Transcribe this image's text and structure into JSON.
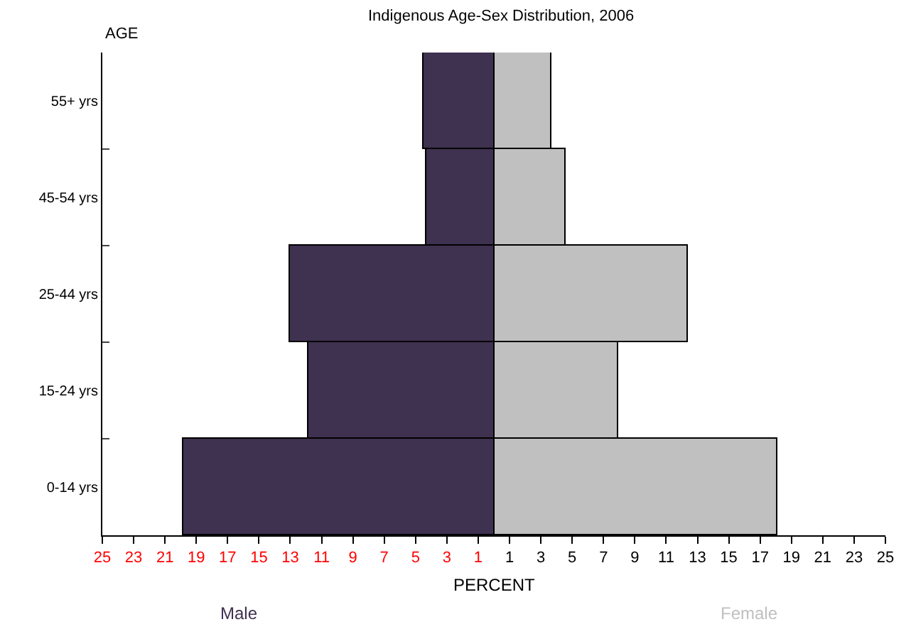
{
  "chart_data": {
    "type": "bar",
    "title": "Indigenous Age-Sex Distribution, 2006",
    "xlabel": "PERCENT",
    "ylabel": "AGE",
    "orientation": "horizontal",
    "stacked": true,
    "categories": [
      "55+ yrs",
      "45-54 yrs",
      "25-44 yrs",
      "15-24 yrs",
      "0-14 yrs"
    ],
    "series": [
      {
        "name": "Male",
        "color": "#3f3150",
        "values": [
          -4.5,
          -4.3,
          -13.0,
          -11.8,
          -19.8
        ]
      },
      {
        "name": "Female",
        "color": "#c0c0c0",
        "values": [
          3.7,
          4.6,
          12.4,
          7.9,
          18.1
        ]
      }
    ],
    "xlim": [
      -25,
      25
    ],
    "xticks": [
      {
        "value": -25,
        "label": "25"
      },
      {
        "value": -23,
        "label": "23"
      },
      {
        "value": -21,
        "label": "21"
      },
      {
        "value": -19,
        "label": "19"
      },
      {
        "value": -17,
        "label": "17"
      },
      {
        "value": -15,
        "label": "15"
      },
      {
        "value": -13,
        "label": "13"
      },
      {
        "value": -11,
        "label": "11"
      },
      {
        "value": -9,
        "label": "9"
      },
      {
        "value": -7,
        "label": "7"
      },
      {
        "value": -5,
        "label": "5"
      },
      {
        "value": -3,
        "label": "3"
      },
      {
        "value": -1,
        "label": "1"
      },
      1,
      3,
      5,
      7,
      9,
      11,
      13,
      15,
      17,
      19,
      21,
      23,
      25
    ],
    "legend": false
  }
}
